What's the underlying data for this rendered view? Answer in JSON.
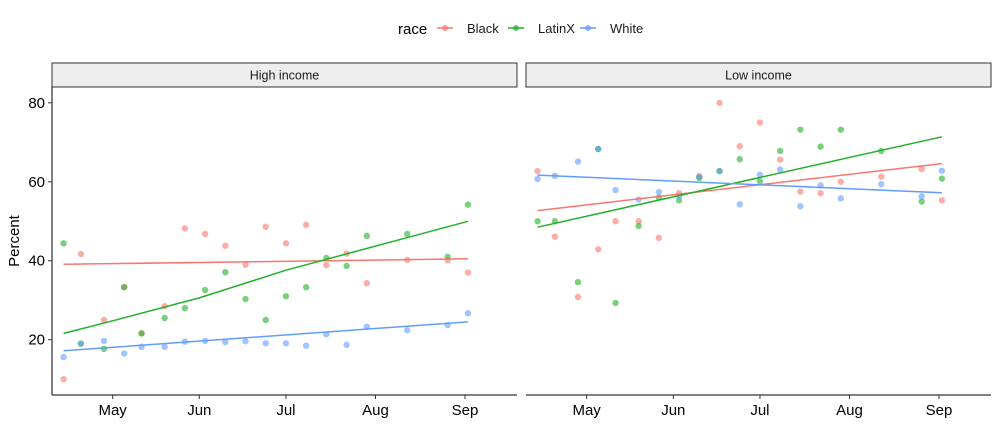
{
  "chart_data": {
    "type": "scatter",
    "legend": {
      "title": "race",
      "position": "top",
      "entries": [
        {
          "name": "Black",
          "color": "#F8766D"
        },
        {
          "name": "LatinX",
          "color": "#22B02A"
        },
        {
          "name": "White",
          "color": "#619CFF"
        }
      ]
    },
    "ylabel": "Percent",
    "xlabel": "",
    "ylim": [
      6,
      84
    ],
    "yticks": [
      20,
      40,
      60,
      80
    ],
    "xlim": [
      -21,
      140
    ],
    "xtick_positions": [
      0,
      30,
      60,
      91,
      122
    ],
    "xtick_labels": [
      "May",
      "Jun",
      "Jul",
      "Aug",
      "Sep"
    ],
    "grid": false,
    "panels": [
      {
        "title": "High income",
        "series": [
          {
            "name": "Black",
            "color": "#F8766D",
            "x": [
              -17,
              -11,
              -3,
              4,
              10,
              18,
              25,
              32,
              39,
              46,
              53,
              60,
              67,
              74,
              81,
              88,
              102,
              116,
              123
            ],
            "y": [
              10,
              41.7,
              25,
              33.3,
              21.6,
              28.5,
              48.2,
              46.8,
              43.8,
              39,
              48.6,
              44.4,
              49.1,
              38.9,
              41.8,
              34.3,
              40.2,
              40.1,
              37
            ],
            "trend": [
              [
                -17,
                39.1
              ],
              [
                123,
                40.5
              ]
            ]
          },
          {
            "name": "LatinX",
            "color": "#22B02A",
            "x": [
              -17,
              -11,
              -3,
              4,
              10,
              18,
              25,
              32,
              39,
              46,
              53,
              60,
              67,
              74,
              81,
              88,
              102,
              116,
              123
            ],
            "y": [
              44.4,
              19,
              17.7,
              33.3,
              21.6,
              25.5,
              28,
              32.6,
              37.1,
              30.3,
              25,
              31,
              33.3,
              40.7,
              38.7,
              46.3,
              46.8,
              41,
              54.2
            ],
            "trend": [
              [
                -17,
                21.6
              ],
              [
                0,
                24.8
              ],
              [
                30,
                30.6
              ],
              [
                60,
                37.6
              ],
              [
                90,
                43.5
              ],
              [
                123,
                50
              ]
            ]
          },
          {
            "name": "White",
            "color": "#619CFF",
            "x": [
              -17,
              -11,
              -3,
              4,
              10,
              18,
              25,
              32,
              39,
              46,
              53,
              60,
              67,
              74,
              81,
              88,
              102,
              116,
              123
            ],
            "y": [
              15.6,
              19,
              19.7,
              16.5,
              18.2,
              18.2,
              19.5,
              19.7,
              19.4,
              19.6,
              19.1,
              19.1,
              18.5,
              21.4,
              18.7,
              23.3,
              22.4,
              23.7,
              26.7
            ],
            "trend": [
              [
                -17,
                17.2
              ],
              [
                123,
                24.5
              ]
            ]
          }
        ]
      },
      {
        "title": "Low income",
        "series": [
          {
            "name": "Black",
            "color": "#F8766D",
            "x": [
              -17,
              -11,
              -3,
              4,
              10,
              18,
              25,
              32,
              39,
              46,
              53,
              60,
              67,
              74,
              81,
              88,
              102,
              116,
              123
            ],
            "y": [
              62.7,
              46.1,
              30.8,
              42.9,
              50,
              50,
              45.8,
              57.1,
              61.4,
              80,
              69,
              75,
              65.6,
              57.5,
              57.1,
              60,
              61.3,
              63.2,
              55.3
            ],
            "trend": [
              [
                -17,
                52.7
              ],
              [
                123,
                64.6
              ]
            ]
          },
          {
            "name": "LatinX",
            "color": "#22B02A",
            "x": [
              -17,
              -11,
              -3,
              4,
              10,
              18,
              25,
              32,
              39,
              46,
              53,
              60,
              67,
              74,
              81,
              88,
              102,
              116,
              123
            ],
            "y": [
              50,
              50,
              34.6,
              68.3,
              29.3,
              48.8,
              56,
              55.3,
              61,
              62.7,
              65.7,
              60.1,
              67.8,
              73.2,
              68.9,
              73.2,
              67.8,
              55,
              60.8
            ],
            "trend": [
              [
                -17,
                48.5
              ],
              [
                123,
                71.4
              ]
            ]
          },
          {
            "name": "White",
            "color": "#619CFF",
            "x": [
              -17,
              -11,
              -3,
              4,
              10,
              18,
              25,
              32,
              39,
              46,
              53,
              60,
              67,
              74,
              81,
              88,
              102,
              116,
              123
            ],
            "y": [
              60.7,
              61.5,
              65.1,
              68.3,
              57.9,
              55.5,
              57.4,
              56.4,
              61.2,
              62.7,
              54.3,
              61.8,
              63.1,
              53.8,
              59.1,
              55.8,
              59.4,
              56.3,
              62.8
            ],
            "trend": [
              [
                -17,
                61.7
              ],
              [
                123,
                57.2
              ]
            ]
          }
        ]
      }
    ]
  }
}
